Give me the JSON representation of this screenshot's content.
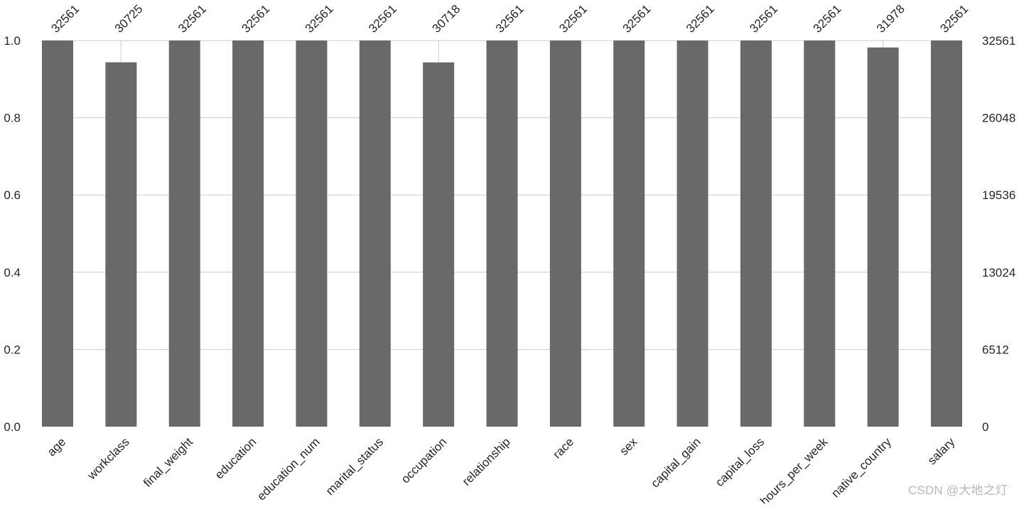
{
  "chart_data": {
    "type": "bar",
    "categories": [
      "age",
      "workclass",
      "final_weight",
      "education",
      "education_num",
      "marital_status",
      "occupation",
      "relationship",
      "race",
      "sex",
      "capital_gain",
      "capital_loss",
      "hours_per_week",
      "native_country",
      "salary"
    ],
    "counts": [
      32561,
      30725,
      32561,
      32561,
      32561,
      32561,
      30718,
      32561,
      32561,
      32561,
      32561,
      32561,
      32561,
      31978,
      32561
    ],
    "total": 32561,
    "ylim": [
      0,
      1.0
    ],
    "left_ticks": [
      "0.0",
      "0.2",
      "0.4",
      "0.6",
      "0.8",
      "1.0"
    ],
    "right_ticks": [
      "0",
      "6512",
      "13024",
      "19536",
      "26048",
      "32561"
    ],
    "grid": true,
    "colors": {
      "bar": "#696969",
      "grid": "#cccccc",
      "text": "#262626"
    }
  },
  "watermark": "CSDN @大地之灯"
}
